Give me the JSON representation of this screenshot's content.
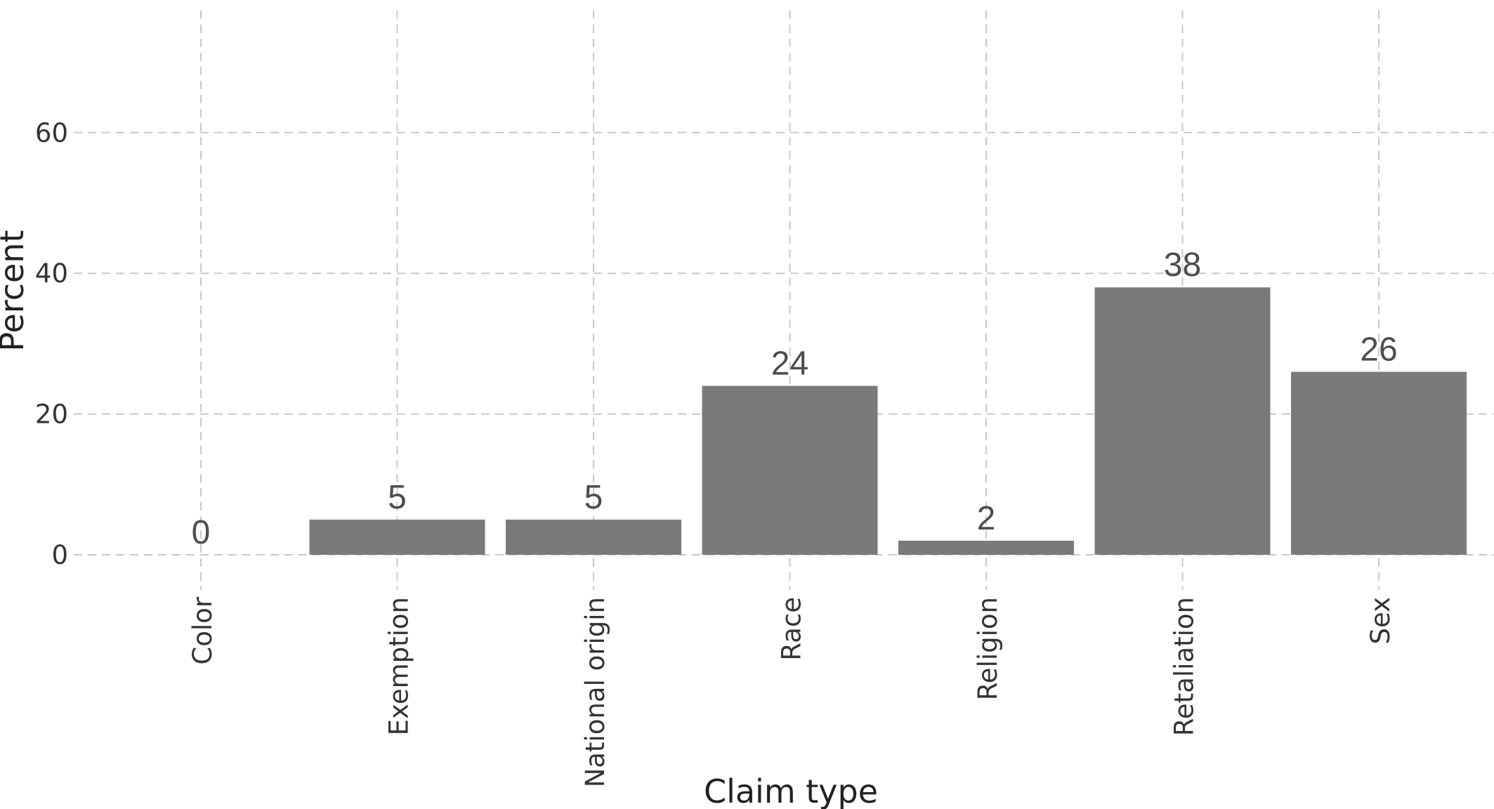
{
  "chart_data": {
    "type": "bar",
    "xlabel": "Claim type",
    "ylabel": "Percent",
    "categories": [
      "Color",
      "Exemption",
      "National origin",
      "Race",
      "Religion",
      "Retaliation",
      "Sex"
    ],
    "values": [
      0,
      5,
      5,
      24,
      2,
      38,
      26
    ],
    "data_labels": [
      "0",
      "5",
      "5",
      "24",
      "2",
      "38",
      "26"
    ],
    "y_ticks": [
      0,
      20,
      40,
      60
    ],
    "y_tick_labels": [
      "0",
      "20",
      "40",
      "60"
    ],
    "ylim": [
      -5,
      78
    ],
    "grid": true,
    "grid_style": "dashed",
    "legend": "none",
    "x_tick_label_rotation": "vertical",
    "colors": {
      "bar": "#7a7a7a",
      "grid": "#c8c8c8",
      "data_label": "#4d4d4d",
      "tick_label": "#333333",
      "axis_title": "#222222"
    }
  }
}
